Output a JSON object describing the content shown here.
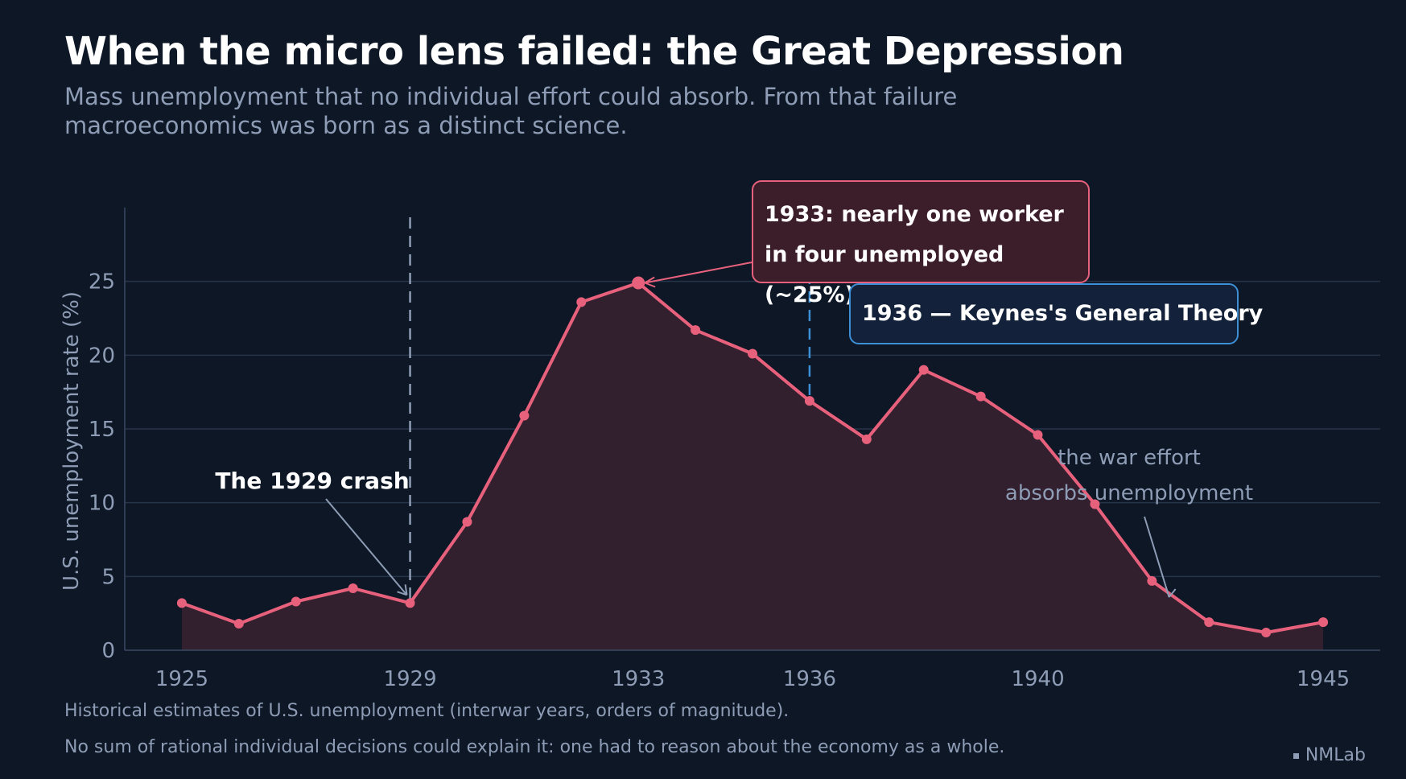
{
  "title": "When the micro lens failed: the Great Depression",
  "subtitle": "Mass unemployment that no individual effort could absorb. From that failure macroeconomics was born as a distinct science.",
  "footnotes": [
    "Historical estimates of U.S. unemployment (interwar years, orders of magnitude).",
    "No sum of rational individual decisions could explain it: one had to reason about the economy as a whole."
  ],
  "brand": "NMLab",
  "colors": {
    "background": "#0d1726",
    "line": "#e8617c",
    "area": "#33202f",
    "keynes_line": "#3d8fd6",
    "crash_line": "#8e9db5",
    "grid": "#263449",
    "muted_text": "#8e9db5"
  },
  "annotations": {
    "crash": "The 1929 crash",
    "peak_line1": "1933: nearly one worker",
    "peak_line2": "in four unemployed (~25%)",
    "keynes": "1936 — Keynes's General Theory",
    "war_line1": "the war effort",
    "war_line2": "absorbs unemployment"
  },
  "chart_data": {
    "type": "area",
    "title": "When the micro lens failed: the Great Depression",
    "ylabel": "U.S. unemployment rate (%)",
    "xlabel": "",
    "x": [
      1925,
      1926,
      1927,
      1928,
      1929,
      1930,
      1931,
      1932,
      1933,
      1934,
      1935,
      1936,
      1937,
      1938,
      1939,
      1940,
      1941,
      1942,
      1943,
      1944,
      1945
    ],
    "y": [
      3.2,
      1.8,
      3.3,
      4.2,
      3.2,
      8.7,
      15.9,
      23.6,
      24.9,
      21.7,
      20.1,
      16.9,
      14.3,
      19.0,
      17.2,
      14.6,
      9.9,
      4.7,
      1.9,
      1.2,
      1.9
    ],
    "xlim": [
      1924,
      1946
    ],
    "ylim": [
      0,
      30
    ],
    "x_ticks": [
      1925,
      1929,
      1933,
      1936,
      1940,
      1945
    ],
    "y_ticks": [
      0,
      5,
      10,
      15,
      20,
      25
    ],
    "vertical_markers": [
      {
        "x": 1929,
        "style": "dashed",
        "color": "#8e9db5"
      },
      {
        "x": 1936,
        "style": "dashed",
        "color": "#3d8fd6"
      }
    ],
    "grid": true
  }
}
